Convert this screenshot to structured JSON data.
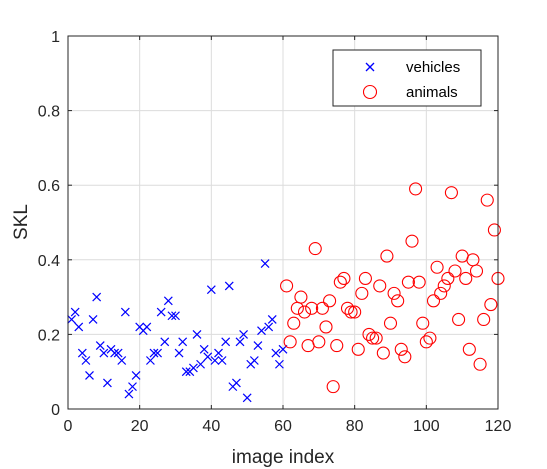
{
  "colors": {
    "vehicles": "#0000ff",
    "animals": "#ff0000",
    "grid": "#dcdcdc",
    "axis": "#262626"
  },
  "chart_data": {
    "type": "scatter",
    "title": "",
    "xlabel": "image index",
    "ylabel": "SKL",
    "xlim": [
      0,
      120
    ],
    "ylim": [
      0,
      1
    ],
    "xticks": [
      0,
      20,
      40,
      60,
      80,
      100,
      120
    ],
    "yticks": [
      0,
      0.2,
      0.4,
      0.6,
      0.8,
      1
    ],
    "ytick_labels": [
      "0",
      "0.2",
      "0.4",
      "0.6",
      "0.8",
      "1"
    ],
    "grid": true,
    "legend_position": "top-right",
    "series": [
      {
        "name": "vehicles",
        "marker": "x",
        "x": [
          1,
          2,
          3,
          4,
          5,
          6,
          7,
          8,
          9,
          10,
          11,
          12,
          13,
          14,
          15,
          16,
          17,
          18,
          19,
          20,
          21,
          22,
          23,
          24,
          25,
          26,
          27,
          28,
          29,
          30,
          31,
          32,
          33,
          34,
          35,
          36,
          37,
          38,
          39,
          40,
          41,
          42,
          43,
          44,
          45,
          46,
          47,
          48,
          49,
          50,
          51,
          52,
          53,
          54,
          55,
          56,
          57,
          58,
          59,
          60
        ],
        "y": [
          0.24,
          0.26,
          0.22,
          0.15,
          0.13,
          0.09,
          0.24,
          0.3,
          0.17,
          0.15,
          0.07,
          0.16,
          0.15,
          0.15,
          0.13,
          0.26,
          0.04,
          0.06,
          0.09,
          0.22,
          0.21,
          0.22,
          0.13,
          0.15,
          0.15,
          0.26,
          0.18,
          0.29,
          0.25,
          0.25,
          0.15,
          0.18,
          0.1,
          0.1,
          0.11,
          0.2,
          0.12,
          0.16,
          0.14,
          0.32,
          0.13,
          0.15,
          0.13,
          0.18,
          0.33,
          0.06,
          0.07,
          0.18,
          0.2,
          0.03,
          0.12,
          0.13,
          0.17,
          0.21,
          0.39,
          0.22,
          0.24,
          0.15,
          0.12,
          0.16
        ]
      },
      {
        "name": "animals",
        "marker": "o",
        "x": [
          61,
          62,
          63,
          64,
          65,
          66,
          67,
          68,
          69,
          70,
          71,
          72,
          73,
          74,
          75,
          76,
          77,
          78,
          79,
          80,
          81,
          82,
          83,
          84,
          85,
          86,
          87,
          88,
          89,
          90,
          91,
          92,
          93,
          94,
          95,
          96,
          97,
          98,
          99,
          100,
          101,
          102,
          103,
          104,
          105,
          106,
          107,
          108,
          109,
          110,
          111,
          112,
          113,
          114,
          115,
          116,
          117,
          118,
          119,
          120
        ],
        "y": [
          0.33,
          0.18,
          0.23,
          0.27,
          0.3,
          0.26,
          0.17,
          0.27,
          0.43,
          0.18,
          0.27,
          0.22,
          0.29,
          0.06,
          0.17,
          0.34,
          0.35,
          0.27,
          0.26,
          0.26,
          0.16,
          0.31,
          0.35,
          0.2,
          0.19,
          0.19,
          0.33,
          0.15,
          0.41,
          0.23,
          0.31,
          0.29,
          0.16,
          0.14,
          0.34,
          0.45,
          0.59,
          0.34,
          0.23,
          0.18,
          0.19,
          0.29,
          0.38,
          0.31,
          0.33,
          0.35,
          0.58,
          0.37,
          0.24,
          0.41,
          0.35,
          0.16,
          0.4,
          0.37,
          0.12,
          0.24,
          0.56,
          0.28,
          0.48,
          0.35
        ]
      }
    ]
  }
}
